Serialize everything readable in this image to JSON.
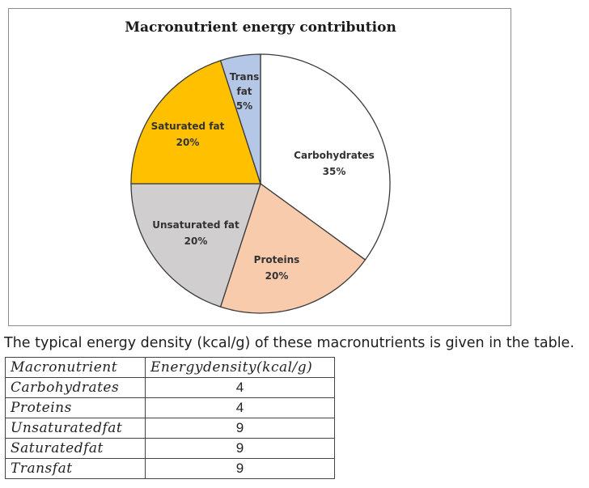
{
  "chart_data": {
    "type": "pie",
    "title": "Macronutrient energy contribution",
    "slices": [
      {
        "label": "Carbohydrates",
        "value": 35,
        "value_label": "35%",
        "color": "#ffffff"
      },
      {
        "label": "Proteins",
        "value": 20,
        "value_label": "20%",
        "color": "#f8cbad"
      },
      {
        "label": "Unsaturated fat",
        "value": 20,
        "value_label": "20%",
        "color": "#d0cece"
      },
      {
        "label": "Saturated fat",
        "value": 20,
        "value_label": "20%",
        "color": "#ffc000"
      },
      {
        "label": "Trans fat",
        "value": 5,
        "value_label": "5%",
        "color": "#b4c7e7"
      }
    ],
    "legend": false
  },
  "caption": "The typical energy density (kcal/g) of these macronutrients is given in the table.",
  "table": {
    "headers": [
      "Macronutrient",
      "Energydensity(kcal/g)"
    ],
    "rows": [
      [
        "Carbohydrates",
        "4"
      ],
      [
        "Proteins",
        "4"
      ],
      [
        "Unsaturatedfat",
        "9"
      ],
      [
        "Saturatedfat",
        "9"
      ],
      [
        "Transfat",
        "9"
      ]
    ]
  }
}
